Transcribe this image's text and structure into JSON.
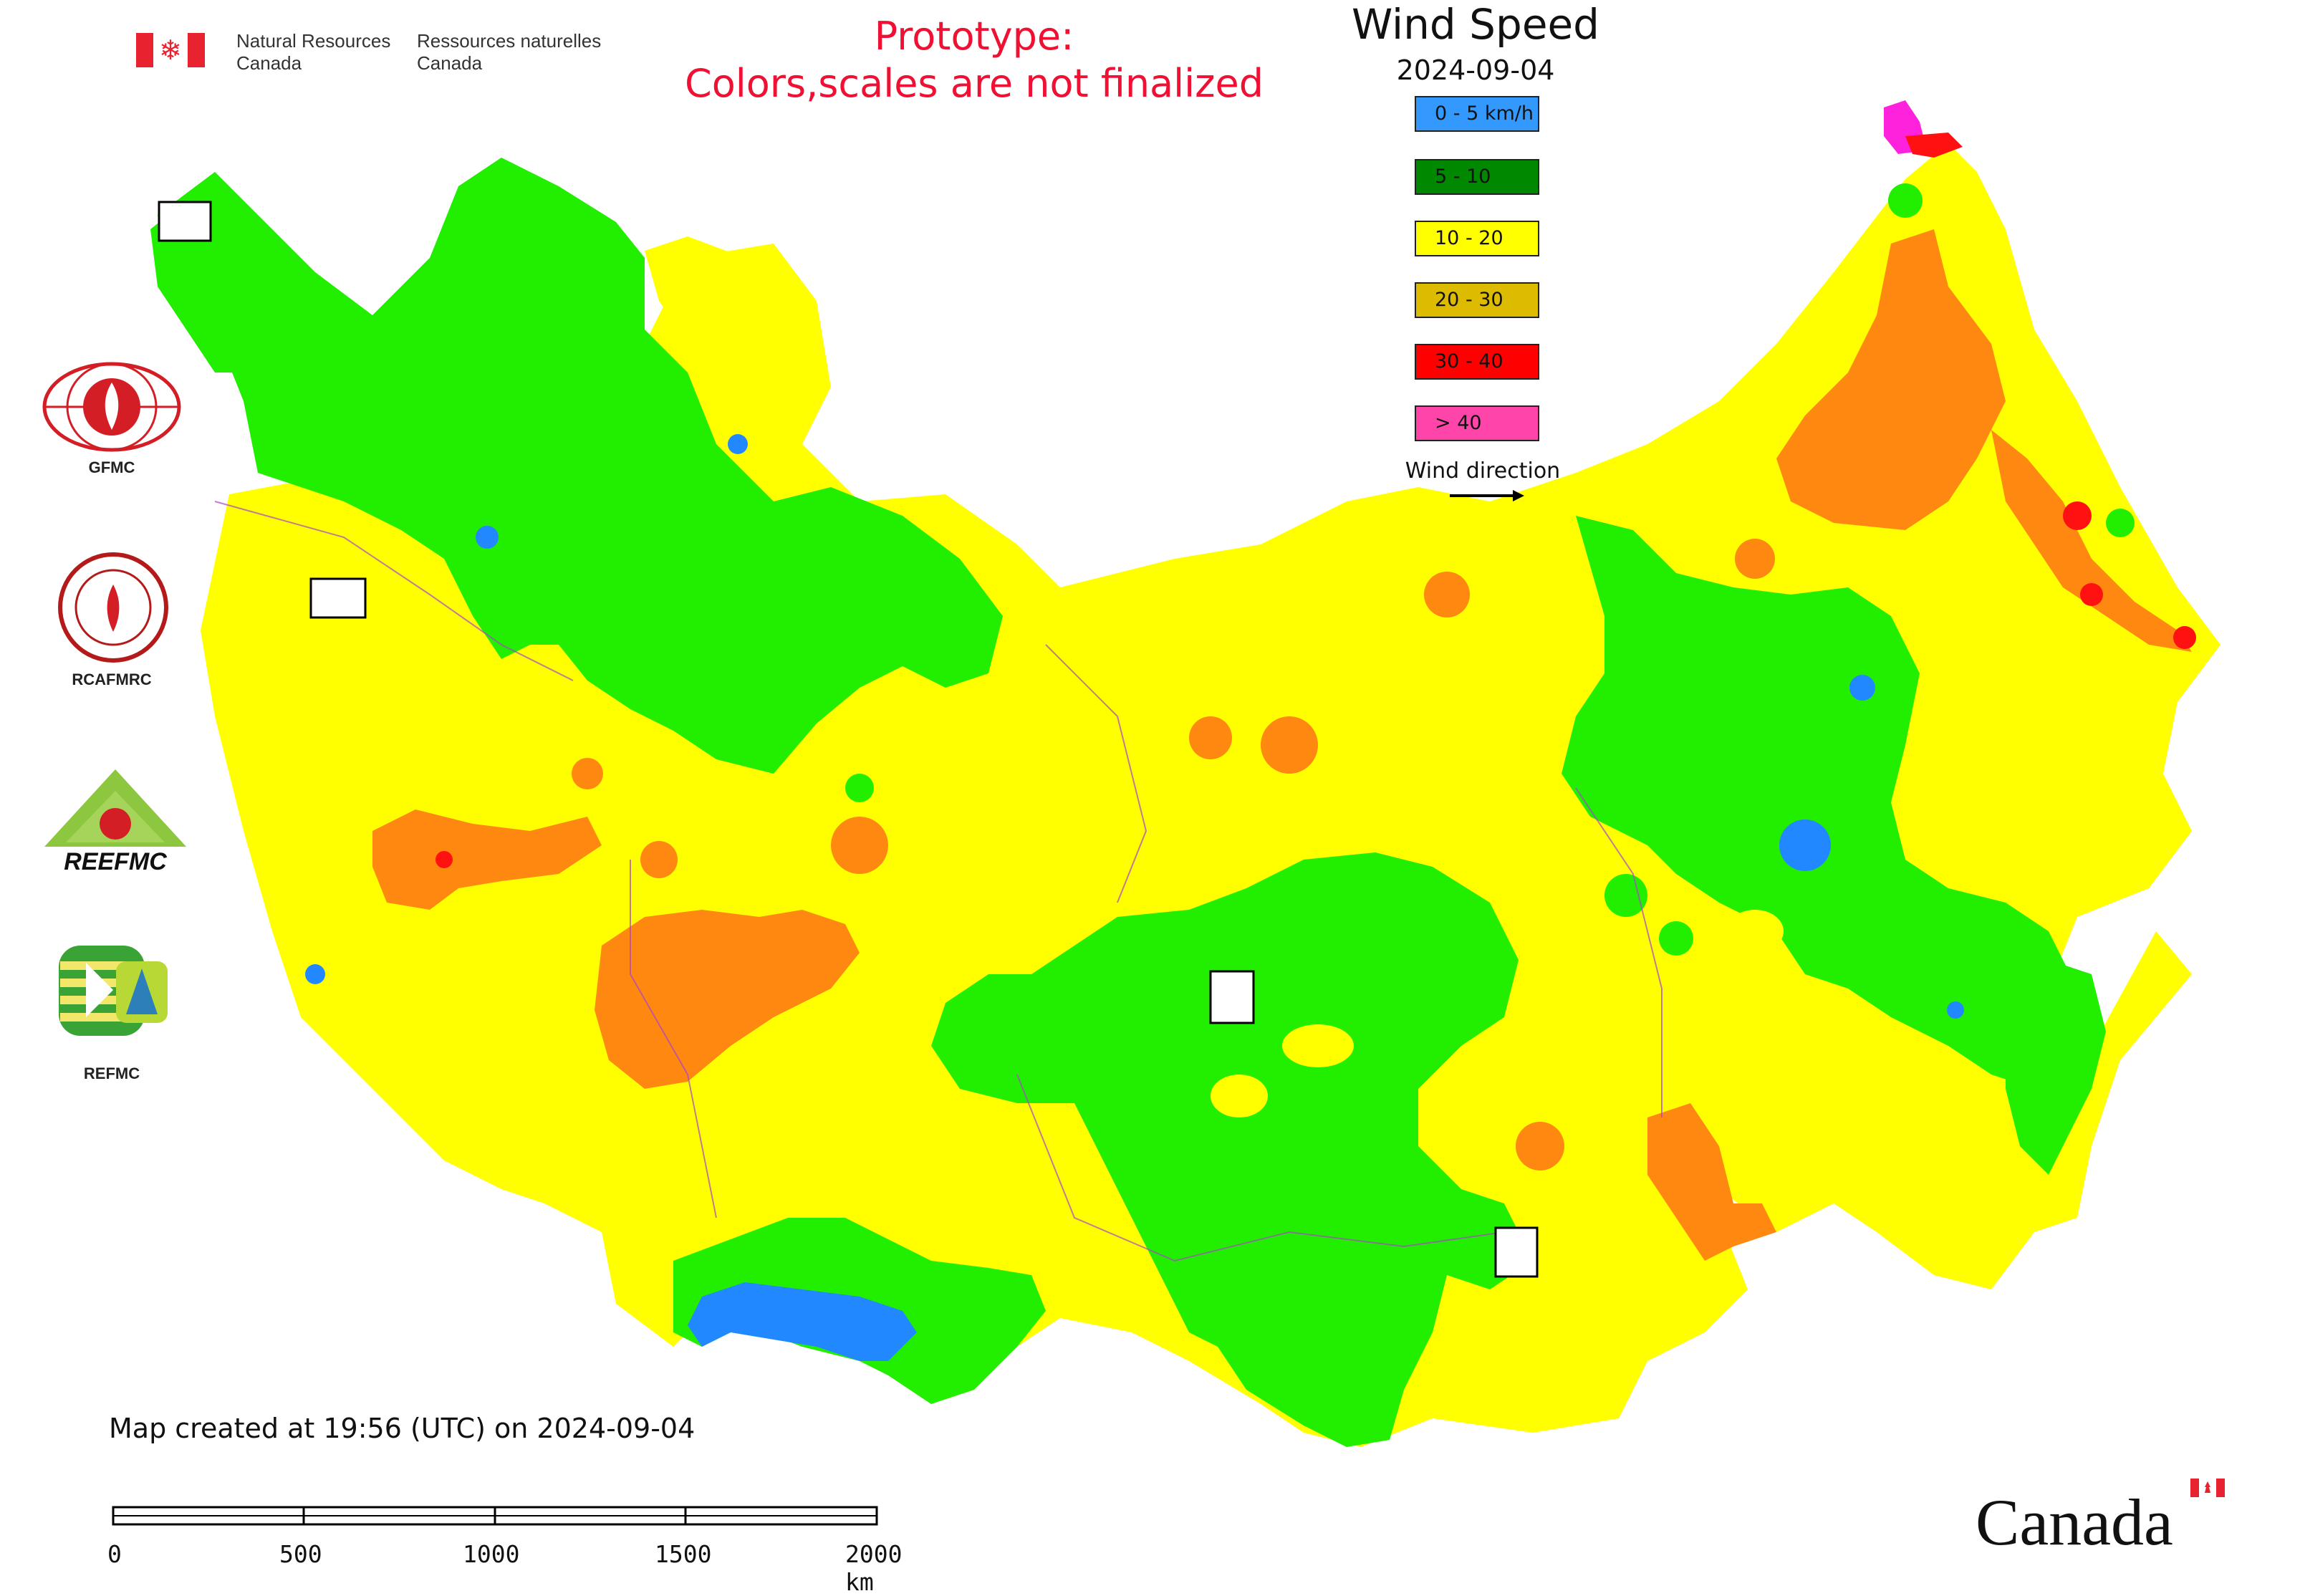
{
  "header": {
    "dept_en": "Natural Resources\nCanada",
    "dept_en_line1": "Natural Resources",
    "dept_en_line2": "Canada",
    "dept_fr_line1": "Ressources naturelles",
    "dept_fr_line2": "Canada"
  },
  "prototype": {
    "line1": "Prototype:",
    "line2": "Colors,scales are not finalized"
  },
  "legend": {
    "title": "Wind Speed",
    "date": "2024-09-04",
    "items": [
      {
        "label": "0 - 5 km/h",
        "color": "#3399ff"
      },
      {
        "label": "5 - 10",
        "color": "#008800"
      },
      {
        "label": "10 - 20",
        "color": "#ffff00"
      },
      {
        "label": "20 - 30",
        "color": "#ddbb00"
      },
      {
        "label": "30 - 40",
        "color": "#ff0000"
      },
      {
        "label": "> 40",
        "color": "#ff44aa"
      }
    ],
    "wind_direction_label": "Wind direction"
  },
  "map_colors": {
    "yellow": "#ffff00",
    "green": "#22ee00",
    "orange": "#ff8811",
    "blue": "#2288ff",
    "red": "#ff1111",
    "magenta": "#ff22dd",
    "border": "#aa44cc"
  },
  "side_logos": [
    {
      "label": "GFMC"
    },
    {
      "label": "RCAFMRC"
    },
    {
      "label": "REEFMC"
    },
    {
      "label": "REFMC"
    }
  ],
  "footer": {
    "created": "Map created at 19:56 (UTC) on 2024-09-04",
    "scale_ticks": [
      "0",
      "500",
      "1000",
      "1500",
      "2000 km"
    ],
    "canada_wordmark": "Canada"
  }
}
